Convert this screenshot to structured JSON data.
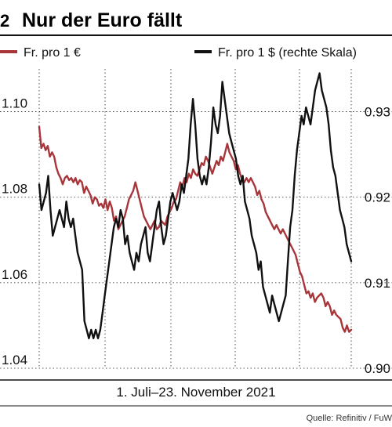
{
  "chart_number": "2",
  "title": "Nur der Euro fällt",
  "period": "1. Juli–23. November 2021",
  "source": "Quelle: Refinitiv / FuW",
  "colors": {
    "eur_line": "#a8353a",
    "usd_line": "#111111",
    "grid": "#222222",
    "axis": "#111111"
  },
  "chart_data": {
    "type": "line",
    "title": "Nur der Euro fällt",
    "xlabel": "1. Juli–23. November 2021",
    "y_left": {
      "ylim": [
        1.04,
        1.11
      ],
      "ticks": [
        1.04,
        1.06,
        1.08,
        1.1
      ],
      "tick_labels": [
        "1.04",
        "1.06",
        "1.08",
        "1.10"
      ]
    },
    "y_right": {
      "ylim": [
        0.9,
        0.935
      ],
      "ticks": [
        0.9,
        0.91,
        0.92,
        0.93
      ],
      "tick_labels": [
        "0.90",
        "0.91",
        "0.92",
        "0.93"
      ]
    },
    "grid": true,
    "legend_placement": "top",
    "series": [
      {
        "name": "Fr. pro 1 €",
        "axis": "left",
        "color": "#a8353a",
        "values": [
          1.0965,
          1.0915,
          1.0925,
          1.091,
          1.092,
          1.0895,
          1.0905,
          1.0895,
          1.087,
          1.0855,
          1.0845,
          1.083,
          1.0845,
          1.085,
          1.084,
          1.0845,
          1.0835,
          1.0845,
          1.083,
          1.084,
          1.0835,
          1.081,
          1.0825,
          1.0815,
          1.0805,
          1.0785,
          1.08,
          1.0795,
          1.078,
          1.0785,
          1.0775,
          1.0795,
          1.077,
          1.079,
          1.0775,
          1.0745,
          1.0755,
          1.0725,
          1.0735,
          1.0745,
          1.0755,
          1.0775,
          1.0795,
          1.0805,
          1.0815,
          1.0835,
          1.0815,
          1.0795,
          1.0775,
          1.0755,
          1.0745,
          1.0735,
          1.0725,
          1.0735,
          1.0745,
          1.0725,
          1.073,
          1.0745,
          1.074,
          1.0735,
          1.0755,
          1.0765,
          1.0775,
          1.079,
          1.0795,
          1.0815,
          1.0835,
          1.0825,
          1.0845,
          1.0835,
          1.0855,
          1.0845,
          1.0865,
          1.0855,
          1.085,
          1.0865,
          1.088,
          1.0875,
          1.0895,
          1.0885,
          1.087,
          1.0855,
          1.087,
          1.0885,
          1.0875,
          1.0895,
          1.0885,
          1.0905,
          1.0925,
          1.0905,
          1.0895,
          1.0885,
          1.0865,
          1.0875,
          1.0855,
          1.084,
          1.0835,
          1.0845,
          1.0835,
          1.0845,
          1.0835,
          1.0825,
          1.0805,
          1.0815,
          1.0795,
          1.0785,
          1.0765,
          1.0755,
          1.0745,
          1.0735,
          1.0725,
          1.0735,
          1.0725,
          1.0715,
          1.0725,
          1.0715,
          1.0705,
          1.0695,
          1.0685,
          1.0675,
          1.0665,
          1.0645,
          1.0625,
          1.0615,
          1.0595,
          1.0575,
          1.058,
          1.0565,
          1.0575,
          1.0555,
          1.0565,
          1.057,
          1.0575,
          1.0565,
          1.0545,
          1.0555,
          1.0545,
          1.0525,
          1.0535,
          1.0525,
          1.052,
          1.0515,
          1.0495,
          1.0485,
          1.05,
          1.0485,
          1.049
        ],
        "x_start": 0,
        "x_end": 1
      },
      {
        "name": "Fr. pro 1 $ (rechte Skala)",
        "axis": "right",
        "color": "#111111",
        "values": [
          0.9215,
          0.9185,
          0.9195,
          0.9205,
          0.9225,
          0.9185,
          0.9155,
          0.9165,
          0.9175,
          0.9185,
          0.9175,
          0.9165,
          0.9195,
          0.9175,
          0.9165,
          0.9175,
          0.9155,
          0.9135,
          0.9125,
          0.9115,
          0.9055,
          0.9045,
          0.9035,
          0.9045,
          0.9035,
          0.9045,
          0.9035,
          0.9045,
          0.9065,
          0.9085,
          0.9105,
          0.9125,
          0.9145,
          0.9165,
          0.9175,
          0.9165,
          0.9185,
          0.9175,
          0.9145,
          0.9155,
          0.9135,
          0.9125,
          0.9115,
          0.9135,
          0.9125,
          0.9145,
          0.9155,
          0.9165,
          0.9135,
          0.9125,
          0.9145,
          0.9165,
          0.9185,
          0.9195,
          0.9165,
          0.9145,
          0.9155,
          0.9175,
          0.9195,
          0.9205,
          0.9195,
          0.9185,
          0.9195,
          0.9215,
          0.9205,
          0.9225,
          0.9245,
          0.9285,
          0.9315,
          0.9285,
          0.9245,
          0.9225,
          0.9215,
          0.9225,
          0.9215,
          0.9235,
          0.9265,
          0.9305,
          0.9285,
          0.9275,
          0.9295,
          0.9335,
          0.9315,
          0.9295,
          0.9275,
          0.9265,
          0.9255,
          0.9245,
          0.9225,
          0.9215,
          0.9225,
          0.9195,
          0.9185,
          0.9175,
          0.9155,
          0.9145,
          0.9135,
          0.9115,
          0.9125,
          0.9095,
          0.9085,
          0.9075,
          0.9065,
          0.9085,
          0.9075,
          0.9065,
          0.9055,
          0.9065,
          0.9075,
          0.9085,
          0.9125,
          0.9165,
          0.9185,
          0.9225,
          0.9255,
          0.9275,
          0.9295,
          0.9285,
          0.9305,
          0.9295,
          0.9285,
          0.9305,
          0.9325,
          0.9335,
          0.9345,
          0.9325,
          0.9315,
          0.9305,
          0.9285,
          0.9255,
          0.9235,
          0.9225,
          0.9205,
          0.9185,
          0.9175,
          0.9165,
          0.9145,
          0.9135,
          0.9125
        ],
        "x_start": 0,
        "x_end": 1
      }
    ]
  },
  "legend": [
    {
      "label": "Fr. pro 1 €",
      "color": "#a8353a"
    },
    {
      "label": "Fr. pro 1 $ (rechte Skala)",
      "color": "#111111"
    }
  ]
}
